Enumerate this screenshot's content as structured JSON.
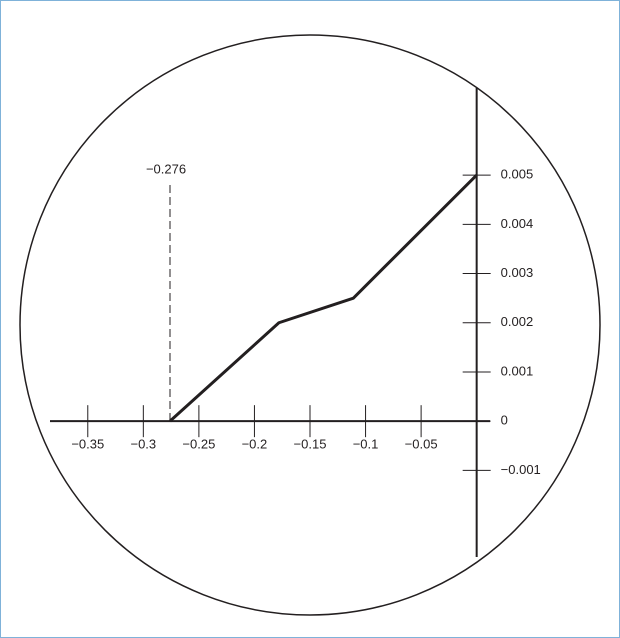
{
  "chart_data": {
    "type": "line",
    "x": [
      -0.276,
      -0.178,
      -0.111,
      0
    ],
    "series": [
      {
        "color": "#231f20",
        "values": [
          0,
          0.002,
          0.0025,
          0.005
        ]
      }
    ],
    "xlim": [
      -0.384,
      0.012
    ],
    "ylim": [
      -0.00276,
      0.00677
    ],
    "xticks": [
      {
        "value": -0.35,
        "label": "−0.35"
      },
      {
        "value": -0.3,
        "label": "−0.3"
      },
      {
        "value": -0.25,
        "label": "−0.25"
      },
      {
        "value": -0.2,
        "label": "−0.2"
      },
      {
        "value": -0.15,
        "label": "−0.15"
      },
      {
        "value": -0.1,
        "label": "−0.1"
      },
      {
        "value": -0.05,
        "label": "−0.05"
      }
    ],
    "yticks": [
      {
        "value": -0.001,
        "label": "−0.001"
      },
      0,
      0.001,
      0.002,
      0.003,
      0.004,
      0.005
    ],
    "annotations": [
      {
        "text": "−0.276",
        "x": -0.276
      }
    ]
  }
}
